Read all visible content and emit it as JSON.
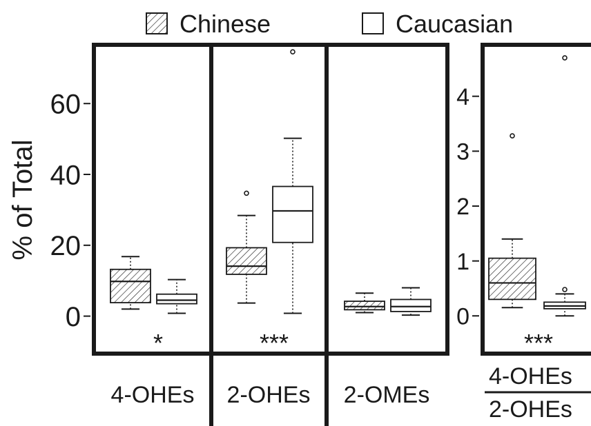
{
  "chart_data": {
    "type": "boxplot",
    "legend": {
      "position": "top-center",
      "entries": [
        {
          "name": "Chinese",
          "pattern": "hatched"
        },
        {
          "name": "Caucasian",
          "pattern": "open"
        }
      ]
    },
    "panels": [
      {
        "id": "main",
        "ylabel": "% of Total",
        "ylim": [
          -10,
          76
        ],
        "yticks": [
          0,
          20,
          40,
          60
        ],
        "groups": [
          {
            "label": "4-OHEs",
            "significance": "*",
            "boxes": [
              {
                "series": "Chinese",
                "whisker_low": 2,
                "q1": 3.8,
                "median": 9.8,
                "q3": 13.2,
                "whisker_high": 16.8,
                "outliers": []
              },
              {
                "series": "Caucasian",
                "whisker_low": 0.8,
                "q1": 3.5,
                "median": 4.5,
                "q3": 6.2,
                "whisker_high": 10.3,
                "outliers": []
              }
            ]
          },
          {
            "label": "2-OHEs",
            "significance": "***",
            "boxes": [
              {
                "series": "Chinese",
                "whisker_low": 3.7,
                "q1": 11.8,
                "median": 14.1,
                "q3": 19.3,
                "whisker_high": 28.4,
                "outliers": [
                  34.7
                ]
              },
              {
                "series": "Caucasian",
                "whisker_low": 0.8,
                "q1": 20.8,
                "median": 29.7,
                "q3": 36.6,
                "whisker_high": 50.2,
                "outliers": [
                  74.6
                ]
              }
            ]
          },
          {
            "label": "2-OMEs",
            "significance": "",
            "boxes": [
              {
                "series": "Chinese",
                "whisker_low": 1.0,
                "q1": 1.8,
                "median": 2.7,
                "q3": 4.2,
                "whisker_high": 6.5,
                "outliers": []
              },
              {
                "series": "Caucasian",
                "whisker_low": 0.3,
                "q1": 1.3,
                "median": 2.7,
                "q3": 4.7,
                "whisker_high": 8.0,
                "outliers": []
              }
            ]
          }
        ]
      },
      {
        "id": "ratio",
        "ylim": [
          -0.65,
          4.9
        ],
        "yticks": [
          0,
          1,
          2,
          3,
          4
        ],
        "xlabel_numerator": "4-OHEs",
        "xlabel_denominator": "2-OHEs",
        "groups": [
          {
            "label": "4-OHEs/2-OHEs",
            "significance": "***",
            "boxes": [
              {
                "series": "Chinese",
                "whisker_low": 0.15,
                "q1": 0.3,
                "median": 0.6,
                "q3": 1.05,
                "whisker_high": 1.4,
                "outliers": [
                  3.28
                ]
              },
              {
                "series": "Caucasian",
                "whisker_low": 0.0,
                "q1": 0.13,
                "median": 0.18,
                "q3": 0.25,
                "whisker_high": 0.4,
                "outliers": [
                  0.48,
                  4.7
                ]
              }
            ]
          }
        ]
      }
    ]
  }
}
